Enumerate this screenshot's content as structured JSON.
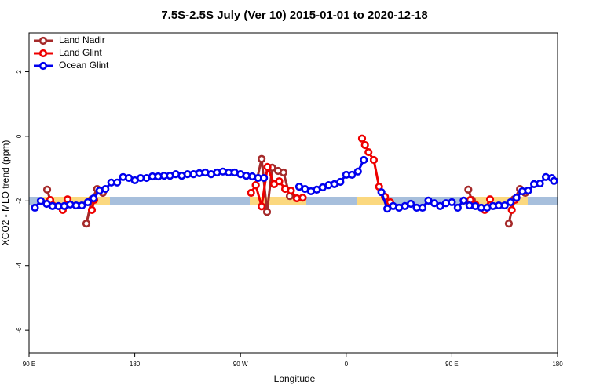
{
  "chart_data": {
    "type": "line",
    "title": "7.5S-2.5S July (Ver 10)   2015-01-01 to 2020-12-18",
    "x_label": "Longitude",
    "y_label": "XCO2 - MLO trend (ppm)",
    "xlim": [
      90,
      540
    ],
    "xticks": [
      {
        "value": 90,
        "label": "90 E"
      },
      180,
      {
        "value": 270,
        "label": "90 W"
      },
      {
        "value": 360,
        "label": "0"
      },
      {
        "value": 450,
        "label": "90 E"
      },
      {
        "value": 540,
        "label": "180"
      }
    ],
    "ylim": [
      -6.7,
      3.2
    ],
    "yticks": [
      2,
      0,
      -2,
      -4,
      -6
    ],
    "legend": "top-left",
    "series": [
      {
        "name": "Land Nadir",
        "color": "#a52a2a",
        "x": [
          105.4,
          108,
          120,
          138.8,
          143.5,
          148,
          152.8,
          200,
          283,
          288,
          292.6,
          297,
          302,
          306.6,
          312,
          400,
          464,
          467,
          480,
          498.5,
          503,
          508,
          512.5
        ],
        "values": [
          -1.65,
          -1.97,
          null,
          -2.7,
          -1.95,
          -1.63,
          -1.75,
          null,
          -1.51,
          -0.7,
          -2.34,
          -0.97,
          -1.07,
          -1.12,
          -1.85,
          null,
          -1.65,
          -1.97,
          null,
          -2.7,
          -1.95,
          -1.63,
          -1.75
        ]
      },
      {
        "name": "Land Glint",
        "color": "#ee0000",
        "x": [
          108,
          118.7,
          122.8,
          130,
          143.5,
          145.5,
          200,
          279,
          283,
          288,
          293,
          298.6,
          303,
          308,
          313,
          318,
          323,
          350,
          373.5,
          376,
          379,
          383.5,
          388,
          393,
          397.5,
          430,
          465.7,
          470,
          478,
          482.5,
          490,
          501,
          503.7
        ],
        "values": [
          -1.97,
          -2.28,
          -1.95,
          null,
          -2.28,
          -1.97,
          null,
          -1.75,
          -1.51,
          -2.17,
          -0.95,
          -1.48,
          -1.39,
          -1.63,
          -1.68,
          -1.92,
          -1.9,
          null,
          -0.07,
          -0.27,
          -0.49,
          -0.73,
          -1.56,
          -1.87,
          -2.04,
          null,
          -1.97,
          -2.11,
          -2.28,
          -1.95,
          null,
          -2.28,
          -1.97
        ]
      },
      {
        "name": "Ocean Glint",
        "color": "#0000ee",
        "x": [
          95,
          100,
          105,
          110,
          115,
          120,
          125,
          130,
          135,
          140,
          145,
          150,
          155,
          160,
          165,
          170,
          175,
          180,
          185,
          190,
          195,
          200,
          205,
          210,
          215,
          220,
          225,
          230,
          235,
          240,
          245,
          250,
          255,
          260,
          265,
          270,
          275,
          280,
          285,
          290,
          300,
          320,
          325,
          330,
          335,
          340,
          345,
          350,
          355,
          360,
          365,
          370,
          375,
          385,
          390,
          395,
          400,
          405,
          410,
          415,
          420,
          425,
          430,
          435,
          440,
          445,
          450,
          455,
          460,
          465,
          470,
          475,
          480,
          485,
          490,
          495,
          500,
          505,
          510,
          515,
          520,
          525,
          530,
          535,
          537
        ],
        "values": [
          -2.21,
          -2.0,
          -2.09,
          -2.16,
          -2.16,
          -2.16,
          -2.11,
          -2.14,
          -2.14,
          -2.04,
          -1.92,
          -1.68,
          -1.63,
          -1.43,
          -1.43,
          -1.26,
          -1.29,
          -1.36,
          -1.29,
          -1.29,
          -1.24,
          -1.24,
          -1.22,
          -1.22,
          -1.17,
          -1.22,
          -1.17,
          -1.17,
          -1.14,
          -1.12,
          -1.17,
          -1.12,
          -1.09,
          -1.12,
          -1.12,
          -1.17,
          -1.22,
          -1.24,
          -1.29,
          -1.29,
          null,
          -1.56,
          -1.63,
          -1.7,
          -1.65,
          -1.58,
          -1.51,
          -1.48,
          -1.41,
          -1.19,
          -1.19,
          -1.09,
          -0.73,
          null,
          -1.73,
          -2.24,
          -2.16,
          -2.21,
          -2.16,
          -2.09,
          -2.21,
          -2.21,
          -1.99,
          -2.07,
          -2.16,
          -2.07,
          -2.04,
          -2.21,
          -1.99,
          -2.14,
          -2.16,
          -2.21,
          -2.21,
          -2.16,
          -2.14,
          -2.14,
          -2.04,
          -1.9,
          -1.7,
          -1.68,
          -1.48,
          -1.46,
          -1.26,
          -1.29,
          -1.38
        ]
      }
    ]
  }
}
